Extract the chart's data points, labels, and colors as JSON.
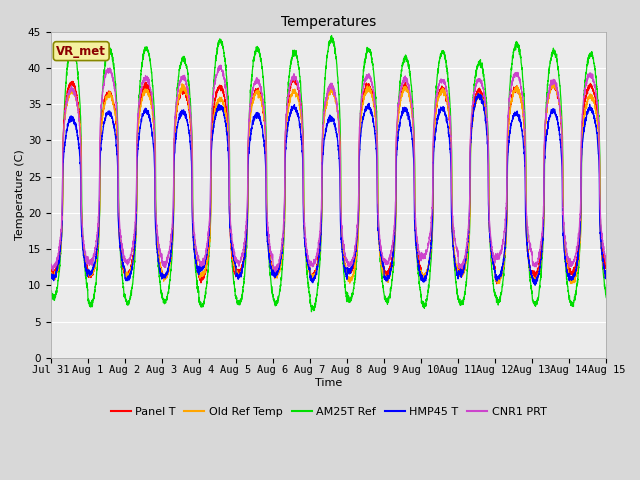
{
  "title": "Temperatures",
  "xlabel": "Time",
  "ylabel": "Temperature (C)",
  "ylim": [
    0,
    45
  ],
  "yticks": [
    0,
    5,
    10,
    15,
    20,
    25,
    30,
    35,
    40,
    45
  ],
  "annotation": "VR_met",
  "annotation_color": "#8B0000",
  "annotation_bg": "#F5F0A0",
  "series_colors": {
    "Panel T": "#FF0000",
    "Old Ref Temp": "#FFA500",
    "AM25T Ref": "#00DD00",
    "HMP45 T": "#0000FF",
    "CNR1 PRT": "#CC44CC"
  },
  "series_linewidth": 0.9,
  "background_color": "#D8D8D8",
  "plot_bg": "#EBEBEB",
  "grid_color": "#FFFFFF",
  "n_days": 15,
  "title_fontsize": 10,
  "axis_label_fontsize": 8,
  "tick_fontsize": 7.5,
  "legend_fontsize": 8
}
